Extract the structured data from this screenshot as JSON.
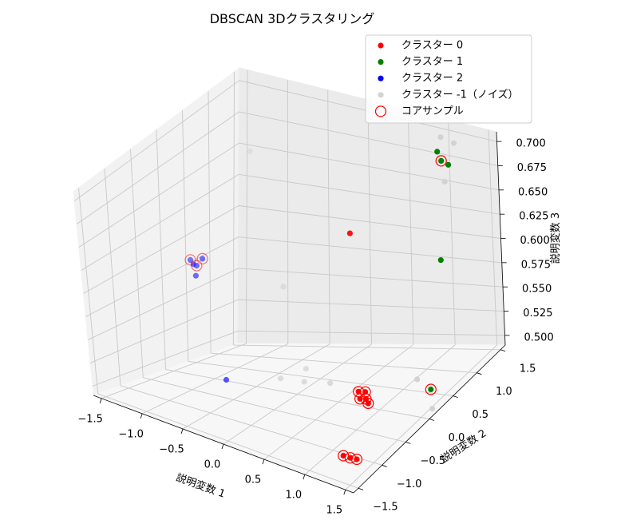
{
  "chart_data": {
    "type": "scatter",
    "projection": "3d",
    "title": "DBSCAN 3Dクラスタリング",
    "xlabel": "説明変数 1",
    "ylabel": "説明変数 2",
    "zlabel": "説明変数 3",
    "xlim": [
      -1.6,
      1.6
    ],
    "ylim": [
      -1.6,
      1.6
    ],
    "zlim": [
      0.49,
      0.71
    ],
    "xticks": [
      -1.5,
      -1.0,
      -0.5,
      0.0,
      0.5,
      1.0,
      1.5
    ],
    "yticks": [
      -1.5,
      -1.0,
      -0.5,
      0.0,
      0.5,
      1.0,
      1.5
    ],
    "zticks": [
      0.5,
      0.525,
      0.55,
      0.575,
      0.6,
      0.625,
      0.65,
      0.675,
      0.7
    ],
    "xtick_labels": [
      "−1.5",
      "−1.0",
      "−0.5",
      "0.0",
      "0.5",
      "1.0",
      "1.5"
    ],
    "ytick_labels": [
      "−1.5",
      "−1.0",
      "−0.5",
      "0.0",
      "0.5",
      "1.0",
      "1.5"
    ],
    "ztick_labels": [
      "0.500",
      "0.525",
      "0.550",
      "0.575",
      "0.600",
      "0.625",
      "0.650",
      "0.675",
      "0.700"
    ],
    "grid": true,
    "legend_position": "top-right",
    "legend": [
      {
        "label": "クラスター 0",
        "color": "#ff0000",
        "kind": "dot"
      },
      {
        "label": "クラスター 1",
        "color": "#008000",
        "kind": "dot"
      },
      {
        "label": "クラスター 2",
        "color": "#0000ff",
        "kind": "dot"
      },
      {
        "label": "クラスター -1（ノイズ）",
        "color": "#d3d3d3",
        "kind": "dot"
      },
      {
        "label": "コアサンプル",
        "color": "#ff0000",
        "kind": "ring"
      }
    ],
    "series": [
      {
        "name": "クラスター 0",
        "color": "#ff0000",
        "points": [
          {
            "x": 0.72,
            "y": 0.04,
            "z": 0.502,
            "core": true
          },
          {
            "x": 0.79,
            "y": 0.06,
            "z": 0.502,
            "core": true
          },
          {
            "x": 0.76,
            "y": 0.0,
            "z": 0.497,
            "core": true
          },
          {
            "x": 0.82,
            "y": 0.02,
            "z": 0.497,
            "core": true
          },
          {
            "x": 0.87,
            "y": -0.02,
            "z": 0.495,
            "core": true
          },
          {
            "x": 1.3,
            "y": -1.3,
            "z": 0.505,
            "core": true
          },
          {
            "x": 1.43,
            "y": -1.38,
            "z": 0.51,
            "core": true
          },
          {
            "x": 1.52,
            "y": -1.4,
            "z": 0.512,
            "core": true
          },
          {
            "x": 0.41,
            "y": 0.47,
            "z": 0.635,
            "core": false
          }
        ]
      },
      {
        "name": "クラスター 1",
        "color": "#008000",
        "points": [
          {
            "x": 1.16,
            "y": 1.14,
            "z": 0.692,
            "core": true
          },
          {
            "x": 1.08,
            "y": 1.2,
            "z": 0.697,
            "core": false
          },
          {
            "x": 1.28,
            "y": 1.08,
            "z": 0.693,
            "core": false
          },
          {
            "x": 1.26,
            "y": 0.9,
            "z": 0.605,
            "core": false
          },
          {
            "x": 1.46,
            "y": 0.28,
            "z": 0.505,
            "core": true
          }
        ]
      },
      {
        "name": "クラスター 2",
        "color": "#0000ff",
        "points": [
          {
            "x": -1.27,
            "y": 0.28,
            "z": 0.59,
            "core": true
          },
          {
            "x": -1.41,
            "y": 0.27,
            "z": 0.587,
            "core": true
          },
          {
            "x": -1.37,
            "y": 0.26,
            "z": 0.584,
            "core": false
          },
          {
            "x": -1.3,
            "y": 0.21,
            "z": 0.585,
            "core": true
          },
          {
            "x": -1.29,
            "y": 0.17,
            "z": 0.577,
            "core": false
          },
          {
            "x": -0.92,
            "y": 0.1,
            "z": 0.488,
            "core": false
          }
        ]
      },
      {
        "name": "クラスター -1（ノイズ）",
        "color": "#d3d3d3",
        "points": [
          {
            "x": 1.07,
            "y": 1.3,
            "z": 0.707,
            "core": false
          },
          {
            "x": 1.26,
            "y": 1.25,
            "z": 0.707,
            "core": false
          },
          {
            "x": 1.27,
            "y": 1.01,
            "z": 0.679,
            "core": false
          },
          {
            "x": -1.1,
            "y": 1.0,
            "z": 0.667,
            "core": false
          },
          {
            "x": -0.6,
            "y": 0.8,
            "z": 0.56,
            "core": false
          },
          {
            "x": -0.4,
            "y": 0.35,
            "z": 0.49,
            "core": false
          },
          {
            "x": -0.2,
            "y": 0.5,
            "z": 0.485,
            "core": false
          },
          {
            "x": -0.4,
            "y": 0.9,
            "z": 0.485,
            "core": false
          },
          {
            "x": 0.0,
            "y": 0.7,
            "z": 0.48,
            "core": false
          },
          {
            "x": 1.11,
            "y": 0.6,
            "z": 0.497,
            "core": false
          },
          {
            "x": 1.52,
            "y": 0.2,
            "z": 0.49,
            "core": false
          }
        ]
      }
    ]
  }
}
